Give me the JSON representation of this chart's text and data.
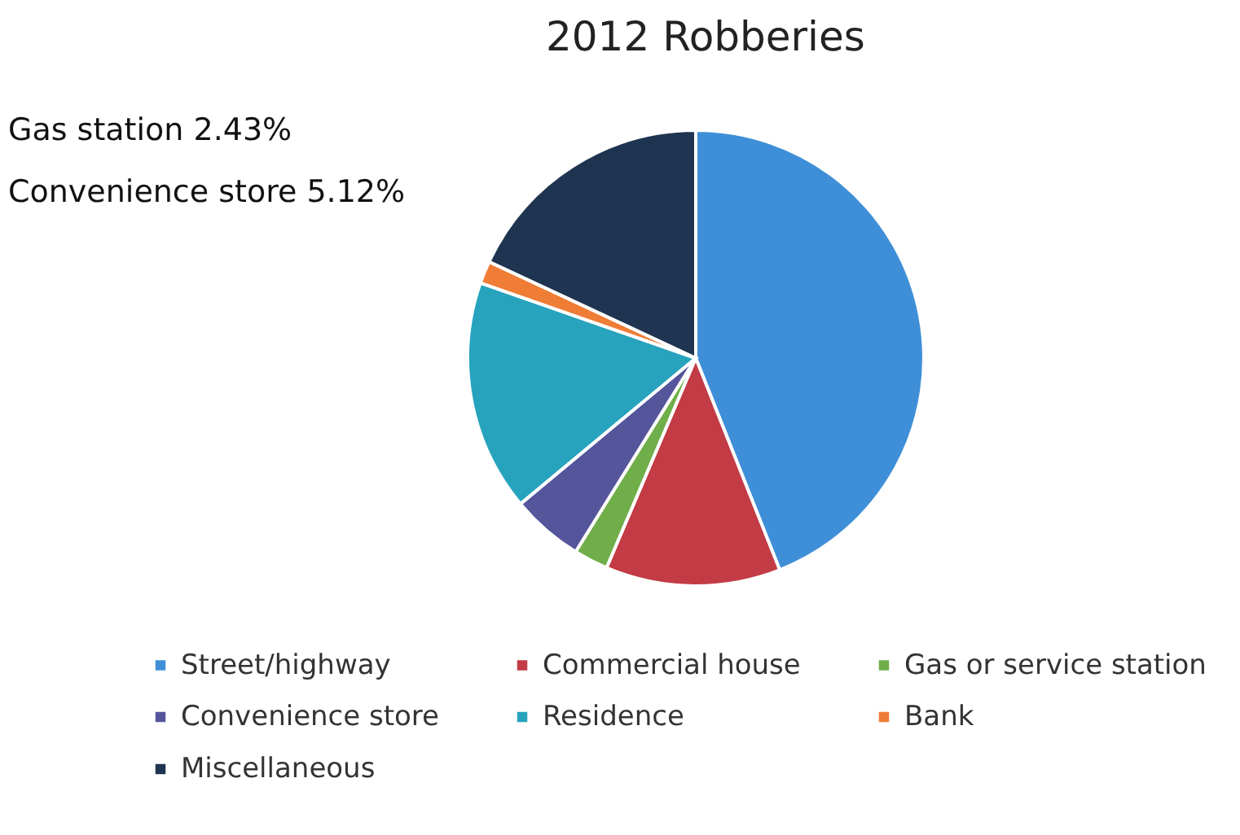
{
  "chart_data": {
    "type": "pie",
    "title": "2012 Robberies",
    "categories": [
      "Street/highway",
      "Commercial house",
      "Gas or service station",
      "Convenience store",
      "Residence",
      "Bank",
      "Miscellaneous"
    ],
    "values": [
      44,
      12.4,
      2.43,
      5.12,
      16.4,
      1.6,
      18.05
    ],
    "colors": [
      "#3f8fd8",
      "#c23b45",
      "#6fae48",
      "#55559c",
      "#27a3bd",
      "#ef7d36",
      "#1e3450"
    ],
    "annotations": [
      "Gas station  2.43%",
      "Convenience store 5.12%"
    ],
    "legend": "bottom"
  }
}
